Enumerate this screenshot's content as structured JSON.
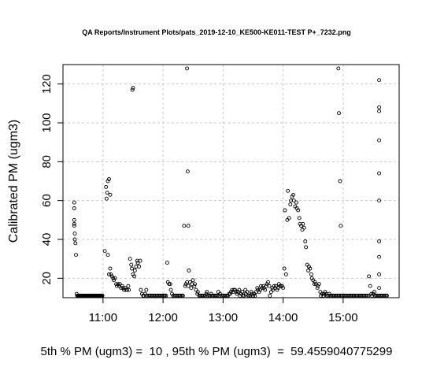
{
  "chart_data": {
    "type": "scatter",
    "title": "QA Reports/Instrument Plots/pats_2019-12-10_KE500-KE011-TEST P+_7232.png",
    "xlabel": "",
    "ylabel": "Calibrated PM (ugm3)",
    "x_ticks": [
      "11:00",
      "12:00",
      "13:00",
      "14:00",
      "15:00"
    ],
    "x_tick_hours": [
      11,
      12,
      13,
      14,
      15
    ],
    "xlim_hours": [
      10.333,
      15.933
    ],
    "y_ticks": [
      20,
      40,
      60,
      80,
      100,
      120
    ],
    "ylim": [
      10,
      130
    ],
    "grid": true,
    "marker": "open-circle",
    "series": [
      {
        "x_hours": [
          10.52,
          10.52,
          10.52,
          10.52,
          10.52,
          10.53,
          10.53,
          10.54,
          10.55,
          10.56,
          10.57,
          10.58,
          10.59,
          10.6,
          10.61,
          10.62,
          10.63,
          10.64,
          10.65,
          10.66,
          10.67,
          10.68,
          10.69,
          10.7,
          10.71,
          10.72,
          10.73,
          10.74,
          10.75,
          10.76,
          10.77,
          10.78,
          10.79,
          10.8,
          10.81,
          10.82,
          10.83,
          10.84,
          10.85,
          10.86,
          10.87,
          10.88,
          10.89,
          10.9,
          10.91,
          10.92,
          10.93,
          10.94,
          10.95,
          10.96,
          10.97,
          10.98,
          10.99,
          11.03,
          11.05,
          11.06,
          11.07,
          11.08,
          11.1,
          11.12,
          11.13,
          11.15,
          11.17,
          11.18,
          11.2,
          11.22,
          11.23,
          11.25,
          11.27,
          11.28,
          11.3,
          11.32,
          11.33,
          11.35,
          11.37,
          11.38,
          11.4,
          11.42,
          11.43,
          11.45,
          11.47,
          11.48,
          11.5,
          11.52,
          11.53,
          11.55,
          11.57,
          11.58,
          11.6,
          11.62,
          11.63,
          11.65,
          11.67,
          11.68,
          11.7,
          11.72,
          11.73,
          11.75,
          11.77,
          11.78,
          11.8,
          11.82,
          11.83,
          11.85,
          11.87,
          11.88,
          11.9,
          11.92,
          11.93,
          11.95,
          11.97,
          11.98,
          12.0,
          12.02,
          12.03,
          12.05,
          12.07,
          12.08,
          12.1,
          12.12,
          12.13,
          12.15,
          12.17,
          12.18,
          12.2,
          12.22,
          12.23,
          12.25,
          12.27,
          12.28,
          12.3,
          12.32,
          12.33,
          12.35,
          12.37,
          12.38,
          12.4,
          12.42,
          12.43,
          12.45,
          12.47,
          12.48,
          12.5,
          12.52,
          12.53,
          12.55,
          12.57,
          12.58,
          12.6,
          12.62,
          12.63,
          12.65,
          12.67,
          12.68,
          12.7,
          12.72,
          12.73,
          12.75,
          12.77,
          12.78,
          12.8,
          12.82,
          12.83,
          12.85,
          12.87,
          12.88,
          12.9,
          12.92,
          12.93,
          12.95,
          12.97,
          12.98,
          13.0,
          13.02,
          13.03,
          13.05,
          13.07,
          13.08,
          13.1,
          13.12,
          13.13,
          13.15,
          13.17,
          13.18,
          13.2,
          13.22,
          13.23,
          13.25,
          13.27,
          13.28,
          13.3,
          13.32,
          13.33,
          13.35,
          13.37,
          13.38,
          13.4,
          13.42,
          13.43,
          13.45,
          13.47,
          13.48,
          13.5,
          13.52,
          13.53,
          13.55,
          13.57,
          13.58,
          13.6,
          13.62,
          13.63,
          13.65,
          13.67,
          13.68,
          13.7,
          13.72,
          13.73,
          13.75,
          13.77,
          13.78,
          13.8,
          13.82,
          13.83,
          13.85,
          13.87,
          13.88,
          13.9,
          13.92,
          13.93,
          13.95,
          13.97,
          13.98,
          14.0,
          14.02,
          14.03,
          14.05,
          14.07,
          14.08,
          14.1,
          14.12,
          14.13,
          14.15,
          14.17,
          14.18,
          14.2,
          14.22,
          14.23,
          14.25,
          14.27,
          14.28,
          14.3,
          14.32,
          14.33,
          14.35,
          14.37,
          14.38,
          14.4,
          14.42,
          14.43,
          14.45,
          14.47,
          14.48,
          14.5,
          14.52,
          14.53,
          14.55,
          14.57,
          14.58,
          14.6,
          14.62,
          14.63,
          14.65,
          14.67,
          14.68,
          14.7,
          14.72,
          14.73,
          14.75,
          14.77,
          14.78,
          14.8,
          14.82,
          14.83,
          14.85,
          14.87,
          14.88,
          14.9,
          14.92,
          14.93,
          14.95,
          14.97,
          14.98,
          15.0,
          15.02,
          15.03,
          15.05,
          15.07,
          15.08,
          15.1,
          15.12,
          15.13,
          15.15,
          15.17,
          15.18,
          15.2,
          15.22,
          15.23,
          15.25,
          15.27,
          15.28,
          15.3,
          15.32,
          15.33,
          15.35,
          15.37,
          15.38,
          15.4,
          15.42,
          15.43,
          15.45,
          15.47,
          15.48,
          15.5,
          15.52,
          15.53,
          15.55,
          15.57,
          15.58,
          15.6,
          15.62,
          15.63,
          15.65,
          15.67,
          15.68,
          15.7,
          15.72,
          15.73,
          15.6,
          15.6,
          15.6,
          15.6,
          15.6,
          15.6,
          15.6,
          15.6,
          15.6,
          15.6,
          14.92,
          14.93,
          14.95,
          14.96,
          12.4,
          12.41,
          12.42,
          11.49,
          11.5,
          11.08,
          11.1,
          11.12
        ],
        "y": [
          59,
          56,
          50,
          48,
          47,
          43,
          40,
          38,
          32,
          12,
          11,
          11,
          11,
          11,
          11,
          11,
          11,
          11,
          11,
          11,
          11,
          11,
          11,
          11,
          11,
          11,
          11,
          11,
          11,
          11,
          11,
          11,
          11,
          11,
          11,
          11,
          11,
          11,
          11,
          11,
          11,
          11,
          11,
          11,
          11,
          11,
          11,
          11,
          11,
          11,
          11,
          11,
          11,
          34,
          67,
          61,
          64,
          32,
          22,
          25,
          22,
          21,
          20,
          19,
          20,
          17,
          16,
          17,
          16,
          17,
          15,
          16,
          15,
          14,
          15,
          14,
          14,
          16,
          14,
          30,
          27,
          25,
          22,
          21,
          24,
          26,
          29,
          28,
          26,
          29,
          14,
          12,
          11,
          11,
          12,
          14,
          11,
          11,
          11,
          11,
          11,
          11,
          11,
          11,
          11,
          11,
          11,
          11,
          11,
          11,
          11,
          11,
          11,
          11,
          11,
          11,
          28,
          18,
          17,
          17,
          14,
          12,
          11,
          11,
          11,
          11,
          11,
          11,
          11,
          11,
          11,
          11,
          11,
          47,
          16,
          17,
          18,
          16,
          24,
          18,
          15,
          17,
          19,
          16,
          17,
          14,
          12,
          13,
          11,
          11,
          11,
          11,
          11,
          11,
          11,
          12,
          13,
          11,
          11,
          11,
          12,
          11,
          11,
          11,
          11,
          11,
          11,
          13,
          11,
          12,
          11,
          11,
          11,
          11,
          11,
          11,
          11,
          11,
          12,
          12,
          13,
          14,
          13,
          14,
          14,
          13,
          12,
          13,
          14,
          11,
          12,
          13,
          11,
          11,
          14,
          12,
          13,
          11,
          11,
          11,
          13,
          12,
          11,
          12,
          11,
          13,
          15,
          14,
          13,
          14,
          16,
          15,
          16,
          15,
          14,
          16,
          17,
          18,
          16,
          11,
          13,
          15,
          14,
          16,
          15,
          16,
          14,
          15,
          17,
          16,
          16,
          16,
          15,
          25,
          55,
          22,
          50,
          65,
          51,
          58,
          60,
          62,
          63,
          60,
          57,
          59,
          56,
          55,
          51,
          48,
          47,
          45,
          48,
          46,
          39,
          36,
          27,
          24,
          26,
          25,
          22,
          20,
          19,
          17,
          18,
          17,
          15,
          16,
          17,
          13,
          11,
          12,
          11,
          12,
          13,
          12,
          11,
          11,
          12,
          11,
          11,
          11,
          11,
          11,
          11,
          11,
          11,
          11,
          11,
          11,
          11,
          11,
          11,
          11,
          11,
          11,
          11,
          11,
          11,
          11,
          11,
          11,
          11,
          11,
          11,
          11,
          11,
          11,
          11,
          11,
          11,
          11,
          11,
          11,
          11,
          11,
          11,
          11,
          21,
          16,
          12,
          11,
          12,
          13,
          11,
          11,
          11,
          11,
          11,
          11,
          11,
          11,
          11,
          11,
          11,
          11,
          11,
          122,
          108,
          106,
          91,
          74,
          60,
          39,
          31,
          22,
          15,
          128,
          105,
          70,
          47,
          128,
          75,
          47,
          117,
          118,
          70,
          71,
          63
        ]
      }
    ],
    "footer": "5th % PM (ugm3) =  10 , 95th % PM (ugm3)  =  59.4559040775299"
  }
}
